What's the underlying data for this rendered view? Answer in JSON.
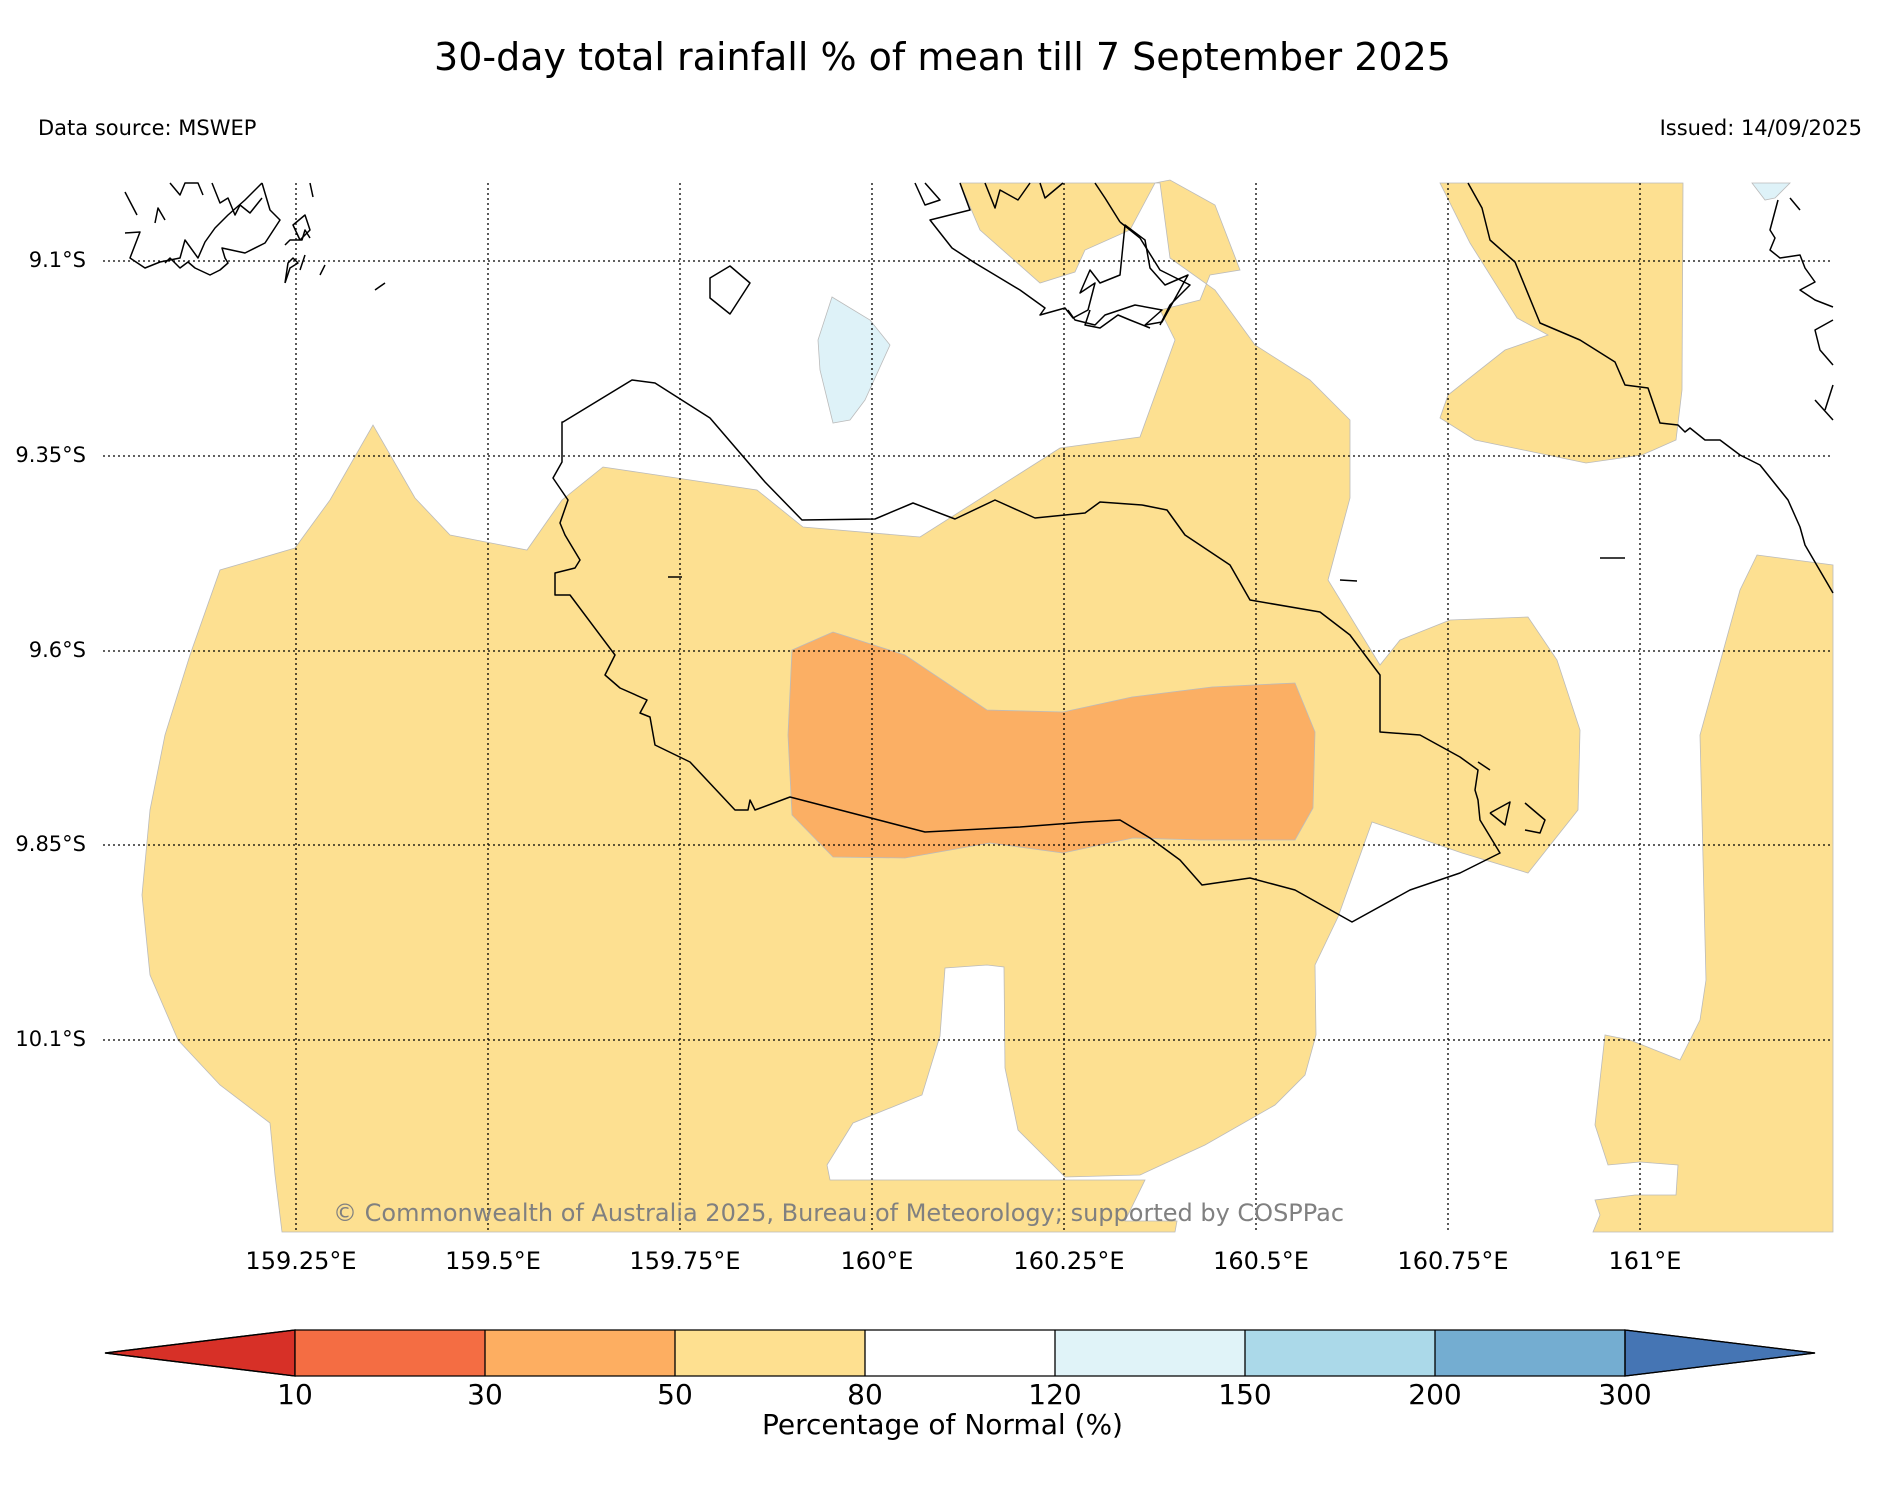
{
  "header": {
    "title": "30-day total rainfall % of mean till 7 September 2025",
    "data_source": "Data source: MSWEP",
    "issued": "Issued: 14/09/2025"
  },
  "map": {
    "lat_labels": [
      "9.1°S",
      "9.35°S",
      "9.6°S",
      "9.85°S",
      "10.1°S"
    ],
    "lon_labels": [
      "159.25°E",
      "159.5°E",
      "159.75°E",
      "160°E",
      "160.25°E",
      "160.5°E",
      "160.75°E",
      "161°E"
    ],
    "copyright": "© Commonwealth of Australia 2025, Bureau of Meteorology; supported by COSPPac",
    "category_colors": {
      "30-50": "#fbaf64",
      "50-80": "#fde091",
      "80-120": "#ffffff",
      "120-150": "#def2f8"
    }
  },
  "colorbar": {
    "ticks": [
      "10",
      "30",
      "50",
      "80",
      "120",
      "150",
      "200",
      "300"
    ],
    "colors": [
      "#d73027",
      "#f46d43",
      "#fdae61",
      "#fee090",
      "#ffffff",
      "#e0f3f8",
      "#abd9e9",
      "#74add1",
      "#4575b4"
    ],
    "label": "Percentage of Normal (%)"
  }
}
